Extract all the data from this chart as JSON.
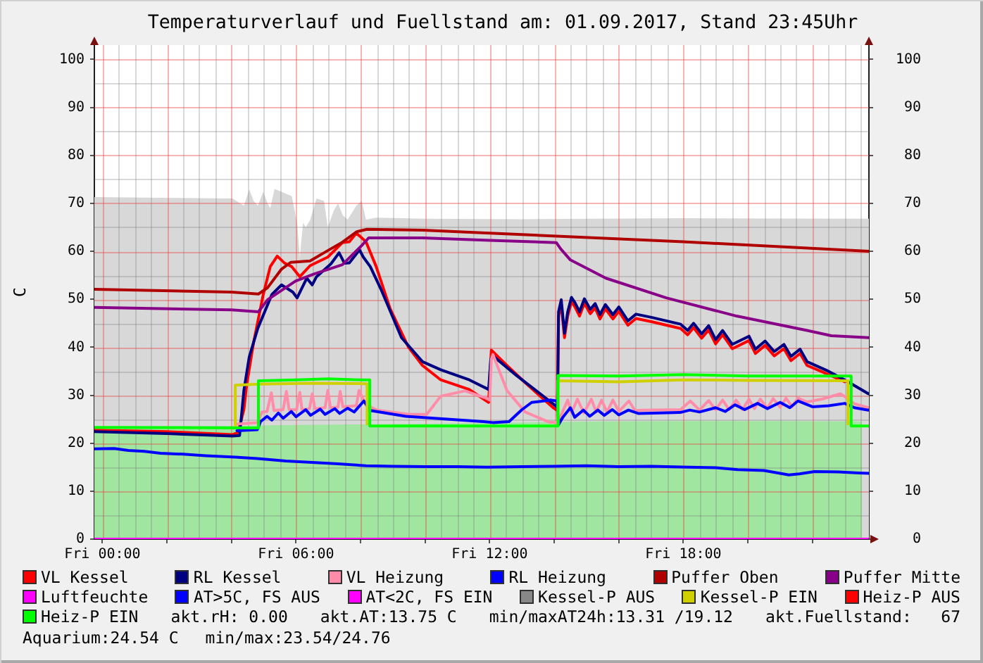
{
  "chart_data": {
    "type": "line",
    "title": "Temperaturverlauf und Fuellstand am: 01.09.2017, Stand 23:45Uhr",
    "ylabel": "C",
    "xlim": [
      "2017-08-31T23:45",
      "2017-09-01T23:45"
    ],
    "xticks": [
      {
        "value": "2017-09-01T00:00",
        "label": "Fri 00:00"
      },
      {
        "value": "2017-09-01T02:00",
        "label": null
      },
      {
        "value": "2017-09-01T04:00",
        "label": null
      },
      {
        "value": "2017-09-01T06:00",
        "label": "Fri 06:00"
      },
      {
        "value": "2017-09-01T08:00",
        "label": null
      },
      {
        "value": "2017-09-01T10:00",
        "label": null
      },
      {
        "value": "2017-09-01T12:00",
        "label": "Fri 12:00"
      },
      {
        "value": "2017-09-01T14:00",
        "label": null
      },
      {
        "value": "2017-09-01T16:00",
        "label": null
      },
      {
        "value": "2017-09-01T18:00",
        "label": "Fri 18:00"
      },
      {
        "value": "2017-09-01T20:00",
        "label": null
      },
      {
        "value": "2017-09-01T22:00",
        "label": null
      }
    ],
    "ylim": [
      0,
      103
    ],
    "yticks": [
      0,
      10,
      20,
      30,
      40,
      50,
      60,
      70,
      80,
      90,
      100
    ],
    "y2lim": [
      0,
      103
    ],
    "y2ticks": [
      0,
      10,
      20,
      30,
      40,
      50,
      60,
      70,
      80,
      90,
      100
    ],
    "grid": true,
    "legend": "bottom",
    "annotations": [
      "akt.rH: 0.00",
      "akt.AT:13.75 C",
      "min/maxAT24h:13.31 /19.12",
      "akt.Fuellstand:   67",
      "Aquarium:24.54 C",
      "min/max:23.54/24.76"
    ],
    "series": [
      {
        "type": "area",
        "color": "#d8d8d8",
        "x": [
          "2017-08-31T23:45",
          "2017-09-01T04:02",
          "2017-09-01T04:23",
          "2017-09-01T04:33",
          "2017-09-01T04:41",
          "2017-09-01T04:49",
          "2017-09-01T04:59",
          "2017-09-01T05:07",
          "2017-09-01T05:12",
          "2017-09-01T05:20",
          "2017-09-01T05:33",
          "2017-09-01T05:52",
          "2017-09-01T06:02",
          "2017-09-01T06:07",
          "2017-09-01T06:13",
          "2017-09-01T06:18",
          "2017-09-01T06:26",
          "2017-09-01T06:38",
          "2017-09-01T06:52",
          "2017-09-01T06:59",
          "2017-09-01T07:10",
          "2017-09-01T07:18",
          "2017-09-01T07:27",
          "2017-09-01T07:36",
          "2017-09-01T07:52",
          "2017-09-01T08:02",
          "2017-09-01T08:10",
          "2017-09-01T08:29",
          "2017-09-01T10:00",
          "2017-09-01T13:00",
          "2017-09-01T18:00",
          "2017-09-01T23:45"
        ],
        "values": [
          71.3,
          71.0,
          69.5,
          72.9,
          70.5,
          69.5,
          72.4,
          70.0,
          69.0,
          73.0,
          72.4,
          71.5,
          66.0,
          58.8,
          66.0,
          65.0,
          66.5,
          71.0,
          70.5,
          65.0,
          68.5,
          70.0,
          67.5,
          66.6,
          69.5,
          70.5,
          66.6,
          67.0,
          66.8,
          66.7,
          66.9,
          66.8
        ]
      },
      {
        "type": "area",
        "color": "#a0e6a0",
        "x": [
          "2017-08-31T23:45",
          "2017-09-01T03:00",
          "2017-09-01T06:00",
          "2017-09-01T09:00",
          "2017-09-01T12:00",
          "2017-09-01T15:00",
          "2017-09-01T18:00",
          "2017-09-01T21:00",
          "2017-09-01T23:32"
        ],
        "values": [
          23.4,
          23.5,
          23.8,
          24.0,
          24.2,
          24.5,
          24.6,
          24.6,
          24.5
        ]
      },
      {
        "name": "VL Kessel",
        "color": "#ff0000",
        "x": [
          "2017-08-31T23:45",
          "2017-09-01T02:00",
          "2017-09-01T04:02",
          "2017-09-01T04:12",
          "2017-09-01T04:23",
          "2017-09-01T04:28",
          "2017-09-01T04:41",
          "2017-09-01T04:59",
          "2017-09-01T05:12",
          "2017-09-01T05:25",
          "2017-09-01T05:38",
          "2017-09-01T05:52",
          "2017-09-01T06:07",
          "2017-09-01T06:26",
          "2017-09-01T06:59",
          "2017-09-01T07:26",
          "2017-09-01T07:39",
          "2017-09-01T07:52",
          "2017-09-01T08:10",
          "2017-09-01T08:29",
          "2017-09-01T08:55",
          "2017-09-01T09:29",
          "2017-09-01T09:55",
          "2017-09-01T10:29",
          "2017-09-01T11:22",
          "2017-09-01T11:58",
          "2017-09-01T12:03",
          "2017-09-01T12:32",
          "2017-09-01T13:06",
          "2017-09-01T13:58",
          "2017-09-01T14:06",
          "2017-09-01T14:08",
          "2017-09-01T14:13",
          "2017-09-01T14:19",
          "2017-09-01T14:25",
          "2017-09-01T14:32",
          "2017-09-01T14:38",
          "2017-09-01T14:47",
          "2017-09-01T14:56",
          "2017-09-01T15:07",
          "2017-09-01T15:16",
          "2017-09-01T15:25",
          "2017-09-01T15:35",
          "2017-09-01T15:49",
          "2017-09-01T16:00",
          "2017-09-01T16:17",
          "2017-09-01T16:32",
          "2017-09-01T17:02",
          "2017-09-01T17:55",
          "2017-09-01T18:08",
          "2017-09-01T18:19",
          "2017-09-01T18:34",
          "2017-09-01T18:47",
          "2017-09-01T19:00",
          "2017-09-01T19:13",
          "2017-09-01T19:31",
          "2017-09-01T20:02",
          "2017-09-01T20:14",
          "2017-09-01T20:32",
          "2017-09-01T20:49",
          "2017-09-01T21:07",
          "2017-09-01T21:20",
          "2017-09-01T21:37",
          "2017-09-01T21:50",
          "2017-09-01T22:26",
          "2017-09-01T23:00"
        ],
        "values": [
          22.7,
          22.4,
          21.8,
          22.2,
          27.0,
          32.0,
          41.0,
          51.0,
          56.8,
          59.0,
          57.6,
          56.8,
          54.7,
          57.0,
          58.8,
          61.8,
          62.0,
          63.8,
          62.0,
          56.8,
          48.0,
          40.0,
          36.2,
          33.2,
          31.2,
          28.5,
          39.4,
          36.2,
          32.6,
          27.4,
          26.8,
          46.5,
          48.8,
          42.0,
          46.5,
          49.5,
          48.5,
          46.5,
          49.2,
          47.0,
          48.2,
          45.9,
          48.0,
          45.9,
          47.5,
          44.6,
          46.0,
          45.3,
          43.9,
          42.6,
          44.1,
          41.9,
          43.6,
          40.7,
          42.6,
          39.7,
          41.4,
          38.7,
          40.4,
          38.2,
          39.7,
          37.2,
          38.7,
          36.2,
          34.5,
          32.8
        ]
      },
      {
        "name": "RL Kessel",
        "color": "#000080",
        "x": [
          "2017-08-31T23:45",
          "2017-09-01T02:00",
          "2017-09-01T04:02",
          "2017-09-01T04:15",
          "2017-09-01T04:23",
          "2017-09-01T04:33",
          "2017-09-01T04:49",
          "2017-09-01T05:15",
          "2017-09-01T05:33",
          "2017-09-01T05:54",
          "2017-09-01T06:02",
          "2017-09-01T06:20",
          "2017-09-01T06:30",
          "2017-09-01T06:38",
          "2017-09-01T07:05",
          "2017-09-01T07:20",
          "2017-09-01T07:30",
          "2017-09-01T07:39",
          "2017-09-01T07:58",
          "2017-09-01T08:05",
          "2017-09-01T08:18",
          "2017-09-01T08:39",
          "2017-09-01T09:16",
          "2017-09-01T09:55",
          "2017-09-01T10:29",
          "2017-09-01T11:22",
          "2017-09-01T11:58",
          "2017-09-01T12:02",
          "2017-09-01T12:06",
          "2017-09-01T12:50",
          "2017-09-01T13:58",
          "2017-09-01T14:06",
          "2017-09-01T14:08",
          "2017-09-01T14:13",
          "2017-09-01T14:19",
          "2017-09-01T14:25",
          "2017-09-01T14:32",
          "2017-09-01T14:38",
          "2017-09-01T14:47",
          "2017-09-01T14:56",
          "2017-09-01T15:07",
          "2017-09-01T15:16",
          "2017-09-01T15:25",
          "2017-09-01T15:35",
          "2017-09-01T15:49",
          "2017-09-01T16:00",
          "2017-09-01T16:17",
          "2017-09-01T16:32",
          "2017-09-01T17:02",
          "2017-09-01T17:55",
          "2017-09-01T18:08",
          "2017-09-01T18:19",
          "2017-09-01T18:34",
          "2017-09-01T18:47",
          "2017-09-01T19:00",
          "2017-09-01T19:13",
          "2017-09-01T19:31",
          "2017-09-01T20:02",
          "2017-09-01T20:14",
          "2017-09-01T20:32",
          "2017-09-01T20:49",
          "2017-09-01T21:07",
          "2017-09-01T21:20",
          "2017-09-01T21:37",
          "2017-09-01T21:50",
          "2017-09-01T22:26",
          "2017-09-01T23:00",
          "2017-09-01T23:44"
        ],
        "values": [
          22.4,
          22.0,
          21.5,
          21.6,
          31.0,
          38.0,
          44.0,
          51.0,
          53.0,
          51.5,
          50.3,
          54.4,
          53.0,
          54.7,
          57.4,
          59.7,
          57.5,
          57.6,
          60.3,
          58.8,
          56.8,
          51.8,
          42.0,
          37.0,
          35.3,
          33.2,
          31.2,
          37.5,
          38.2,
          34.1,
          28.2,
          27.5,
          47.4,
          49.9,
          42.9,
          47.4,
          50.4,
          49.4,
          47.4,
          50.1,
          47.9,
          49.1,
          46.8,
          48.9,
          46.8,
          48.4,
          45.5,
          46.9,
          46.2,
          44.8,
          43.5,
          45.0,
          42.8,
          44.5,
          41.6,
          43.5,
          40.6,
          42.3,
          39.6,
          41.3,
          39.1,
          40.6,
          38.1,
          39.6,
          37.0,
          35.2,
          33.2,
          30.3
        ]
      },
      {
        "name": "VL Heizung",
        "color": "#ff8ca8",
        "x": [
          "2017-09-01T04:10",
          "2017-09-01T04:48",
          "2017-09-01T04:57",
          "2017-09-01T05:06",
          "2017-09-01T05:14",
          "2017-09-01T05:19",
          "2017-09-01T05:36",
          "2017-09-01T05:42",
          "2017-09-01T05:47",
          "2017-09-01T06:01",
          "2017-09-01T06:07",
          "2017-09-01T06:11",
          "2017-09-01T06:25",
          "2017-09-01T06:30",
          "2017-09-01T06:35",
          "2017-09-01T06:54",
          "2017-09-01T06:59",
          "2017-09-01T07:04",
          "2017-09-01T07:18",
          "2017-09-01T07:22",
          "2017-09-01T07:27",
          "2017-09-01T07:52",
          "2017-09-01T07:57",
          "2017-09-01T08:10",
          "2017-09-01T08:30",
          "2017-09-01T09:30",
          "2017-09-01T10:03",
          "2017-09-01T10:29",
          "2017-09-01T11:14",
          "2017-09-01T11:53",
          "2017-09-01T12:00",
          "2017-09-01T12:03",
          "2017-09-01T12:06",
          "2017-09-01T12:32",
          "2017-09-01T13:06",
          "2017-09-01T13:50",
          "2017-09-01T14:07",
          "2017-09-01T14:25",
          "2017-09-01T14:32",
          "2017-09-01T14:43",
          "2017-09-01T14:55",
          "2017-09-01T15:09",
          "2017-09-01T15:18",
          "2017-09-01T15:28",
          "2017-09-01T15:38",
          "2017-09-01T15:49",
          "2017-09-01T16:00",
          "2017-09-01T16:19",
          "2017-09-01T16:30",
          "2017-09-01T16:45",
          "2017-09-01T17:55",
          "2017-09-01T18:13",
          "2017-09-01T18:30",
          "2017-09-01T18:47",
          "2017-09-01T19:00",
          "2017-09-01T19:13",
          "2017-09-01T19:25",
          "2017-09-01T19:38",
          "2017-09-01T19:50",
          "2017-09-01T20:02",
          "2017-09-01T20:12",
          "2017-09-01T20:23",
          "2017-09-01T20:36",
          "2017-09-01T20:47",
          "2017-09-01T21:00",
          "2017-09-01T21:11",
          "2017-09-01T21:22",
          "2017-09-01T21:33",
          "2017-09-01T21:50",
          "2017-09-01T22:18",
          "2017-09-01T22:52",
          "2017-09-01T23:03",
          "2017-09-01T23:18",
          "2017-09-01T23:44"
        ],
        "values": [
          24.0,
          24.3,
          26.5,
          26.6,
          30.5,
          26.8,
          27.0,
          30.8,
          27.0,
          27.0,
          30.6,
          27.0,
          27.2,
          30.3,
          27.2,
          27.4,
          31.0,
          27.4,
          27.5,
          30.8,
          27.6,
          27.8,
          31.0,
          28.0,
          26.9,
          26.0,
          26.0,
          29.8,
          30.9,
          29.4,
          29.0,
          37.5,
          38.5,
          31.0,
          26.5,
          24.4,
          24.3,
          29.0,
          26.3,
          29.2,
          26.3,
          29.2,
          26.5,
          29.0,
          26.5,
          29.0,
          26.6,
          28.8,
          26.8,
          26.9,
          27.0,
          28.8,
          26.9,
          28.9,
          27.0,
          29.0,
          27.0,
          29.0,
          27.0,
          29.2,
          27.2,
          29.2,
          27.3,
          29.3,
          27.5,
          29.4,
          27.6,
          29.4,
          28.6,
          29.2,
          30.3,
          29.5,
          28.2,
          27.4
        ]
      },
      {
        "name": "RL Heizung",
        "color": "#0000ff",
        "x": [
          "2017-09-01T04:10",
          "2017-09-01T04:48",
          "2017-09-01T04:54",
          "2017-09-01T05:06",
          "2017-09-01T05:15",
          "2017-09-01T05:27",
          "2017-09-01T05:36",
          "2017-09-01T05:51",
          "2017-09-01T06:00",
          "2017-09-01T06:18",
          "2017-09-01T06:27",
          "2017-09-01T06:45",
          "2017-09-01T06:54",
          "2017-09-01T07:12",
          "2017-09-01T07:21",
          "2017-09-01T07:36",
          "2017-09-01T07:48",
          "2017-09-01T08:06",
          "2017-09-01T08:18",
          "2017-09-01T09:24",
          "2017-09-01T11:48",
          "2017-09-01T12:06",
          "2017-09-01T12:36",
          "2017-09-01T13:00",
          "2017-09-01T13:18",
          "2017-09-01T13:54",
          "2017-09-01T14:05",
          "2017-09-01T14:08",
          "2017-09-01T14:16",
          "2017-09-01T14:30",
          "2017-09-01T14:38",
          "2017-09-01T14:54",
          "2017-09-01T15:06",
          "2017-09-01T15:21",
          "2017-09-01T15:33",
          "2017-09-01T15:48",
          "2017-09-01T16:00",
          "2017-09-01T16:18",
          "2017-09-01T16:36",
          "2017-09-01T17:54",
          "2017-09-01T18:12",
          "2017-09-01T18:30",
          "2017-09-01T19:00",
          "2017-09-01T19:18",
          "2017-09-01T19:36",
          "2017-09-01T19:54",
          "2017-09-01T20:18",
          "2017-09-01T20:36",
          "2017-09-01T21:00",
          "2017-09-01T21:18",
          "2017-09-01T21:33",
          "2017-09-01T22:00",
          "2017-09-01T22:30",
          "2017-09-01T23:00",
          "2017-09-01T23:18",
          "2017-09-01T23:44"
        ],
        "values": [
          22.6,
          22.8,
          24.5,
          25.6,
          24.8,
          26.3,
          25.2,
          26.6,
          25.5,
          27.0,
          25.8,
          27.1,
          26.0,
          27.2,
          26.2,
          27.3,
          26.5,
          28.8,
          26.8,
          25.6,
          24.5,
          24.3,
          24.5,
          27.0,
          28.5,
          29.0,
          28.8,
          23.9,
          25.4,
          27.4,
          25.4,
          26.9,
          25.6,
          26.9,
          25.8,
          27.0,
          25.9,
          26.9,
          26.2,
          26.4,
          26.9,
          26.5,
          27.4,
          26.6,
          28.0,
          27.0,
          28.3,
          27.2,
          28.5,
          27.4,
          28.8,
          27.6,
          27.8,
          28.3,
          27.4,
          26.9
        ]
      },
      {
        "name": "Puffer Oben",
        "color": "#b00000",
        "x": [
          "2017-08-31T23:45",
          "2017-09-01T04:00",
          "2017-09-01T04:50",
          "2017-09-01T05:07",
          "2017-09-01T05:33",
          "2017-09-01T05:50",
          "2017-09-01T06:26",
          "2017-09-01T06:52",
          "2017-09-01T07:26",
          "2017-09-01T07:53",
          "2017-09-01T08:12",
          "2017-09-01T09:55",
          "2017-09-01T12:00",
          "2017-09-01T18:00",
          "2017-09-01T23:45"
        ],
        "values": [
          52.1,
          51.5,
          51.1,
          52.4,
          56.3,
          57.7,
          58.0,
          59.7,
          61.9,
          64.1,
          64.6,
          64.4,
          63.8,
          62.0,
          60.0
        ]
      },
      {
        "name": "Puffer Mitte",
        "color": "#880088",
        "x": [
          "2017-08-31T23:45",
          "2017-09-01T04:00",
          "2017-09-01T04:50",
          "2017-09-01T05:07",
          "2017-09-01T05:59",
          "2017-09-01T06:34",
          "2017-09-01T07:26",
          "2017-09-01T08:02",
          "2017-09-01T08:15",
          "2017-09-01T09:55",
          "2017-09-01T12:00",
          "2017-09-01T14:04",
          "2017-09-01T14:12",
          "2017-09-01T14:30",
          "2017-09-01T15:36",
          "2017-09-01T17:28",
          "2017-09-01T19:39",
          "2017-09-01T21:50",
          "2017-09-01T22:35",
          "2017-09-01T23:45"
        ],
        "values": [
          48.3,
          47.8,
          47.4,
          49.9,
          53.8,
          55.3,
          57.2,
          61.2,
          62.8,
          62.8,
          62.3,
          61.8,
          60.5,
          58.2,
          54.4,
          50.3,
          46.5,
          43.5,
          42.4,
          42.0
        ]
      },
      {
        "name": "Luftfeuchte",
        "color": "#ff00ff",
        "x": [
          "2017-08-31T23:45",
          "2017-09-01T23:45"
        ],
        "values": [
          0,
          0
        ]
      },
      {
        "name": "AT>5C, FS AUS",
        "color": "#0000ff",
        "x": [
          "2017-08-31T23:45",
          "2017-09-01T00:22",
          "2017-09-01T00:48",
          "2017-09-01T01:18",
          "2017-09-01T01:48",
          "2017-09-01T02:30",
          "2017-09-01T03:12",
          "2017-09-01T04:07",
          "2017-09-01T04:48",
          "2017-09-01T05:41",
          "2017-09-01T06:30",
          "2017-09-01T07:18",
          "2017-09-01T08:10",
          "2017-09-01T09:00",
          "2017-09-01T10:00",
          "2017-09-01T11:00",
          "2017-09-01T11:55",
          "2017-09-01T13:00",
          "2017-09-01T14:00",
          "2017-09-01T15:00",
          "2017-09-01T16:00",
          "2017-09-01T17:00",
          "2017-09-01T18:10",
          "2017-09-01T19:00",
          "2017-09-01T19:41",
          "2017-09-01T20:30",
          "2017-09-01T21:16",
          "2017-09-01T21:36",
          "2017-09-01T22:04",
          "2017-09-01T22:48",
          "2017-09-01T23:26",
          "2017-09-01T23:45"
        ],
        "values": [
          18.8,
          18.9,
          18.5,
          18.3,
          17.9,
          17.7,
          17.4,
          17.1,
          16.8,
          16.3,
          16.0,
          15.7,
          15.3,
          15.2,
          15.1,
          15.1,
          15.0,
          15.1,
          15.2,
          15.3,
          15.1,
          15.2,
          15.0,
          14.9,
          14.5,
          14.3,
          13.4,
          13.6,
          14.1,
          14.0,
          13.8,
          13.7
        ]
      },
      {
        "name": "AT<2C, FS EIN",
        "color": "#ff00ff"
      },
      {
        "name": "Kessel-P AUS",
        "color": "#888888"
      },
      {
        "name": "Kessel-P EIN",
        "color": "#d0d000",
        "x": [
          "2017-09-01T04:07",
          "2017-09-01T04:07",
          "2017-09-01T04:52",
          "2017-09-01T06:30",
          "2017-09-01T08:12",
          "2017-09-01T08:12",
          "2017-09-01T08:13",
          "2017-09-01T14:07",
          "2017-09-01T14:07",
          "2017-09-01T16:00",
          "2017-09-01T18:00",
          "2017-09-01T20:00",
          "2017-09-01T23:06",
          "2017-09-01T23:06"
        ],
        "values": [
          23.3,
          32.1,
          32.3,
          32.5,
          32.4,
          24.0,
          null,
          24.0,
          33.0,
          32.8,
          33.2,
          33.1,
          33.0,
          24.0
        ]
      },
      {
        "name": "Heiz-P AUS",
        "color": "#ff0000"
      },
      {
        "name": "Heiz-P EIN",
        "color": "#00ff00",
        "x": [
          "2017-08-31T23:45",
          "2017-09-01T04:30",
          "2017-09-01T04:50",
          "2017-09-01T04:50",
          "2017-09-01T06:00",
          "2017-09-01T07:00",
          "2017-09-01T08:00",
          "2017-09-01T08:17",
          "2017-09-01T08:17",
          "2017-09-01T14:07",
          "2017-09-01T14:07",
          "2017-09-01T16:00",
          "2017-09-01T18:00",
          "2017-09-01T20:00",
          "2017-09-01T23:12",
          "2017-09-01T23:12",
          "2017-09-01T23:45"
        ],
        "values": [
          23.3,
          23.2,
          23.2,
          33.0,
          33.2,
          33.4,
          33.2,
          33.2,
          23.6,
          23.6,
          34.1,
          34.0,
          34.3,
          34.0,
          34.0,
          23.6,
          23.6
        ]
      }
    ]
  }
}
